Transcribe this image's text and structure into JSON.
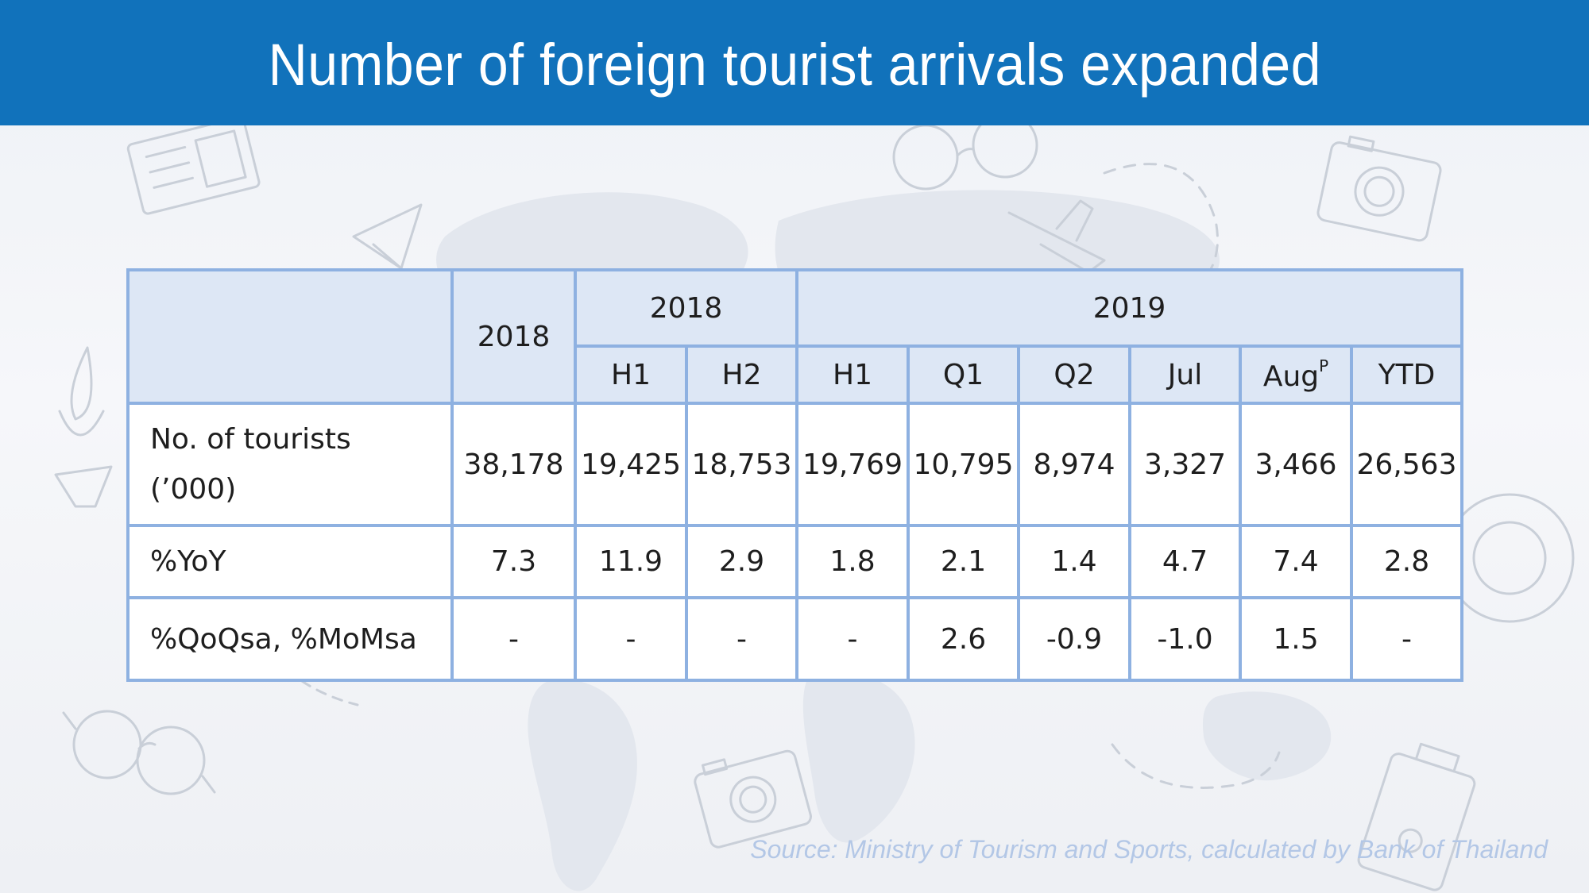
{
  "title": "Number of foreign tourist arrivals expanded",
  "table": {
    "group_headers": {
      "year_2018": "2018",
      "group_2018": "2018",
      "group_2019": "2019"
    },
    "sub_headers": [
      "H1",
      "H2",
      "H1",
      "Q1",
      "Q2",
      "Jul",
      "Aug",
      "YTD"
    ],
    "aug_superscript": "P",
    "rows": [
      {
        "label_line1": "No. of tourists",
        "label_line2": "(’000)",
        "cells": [
          "38,178",
          "19,425",
          "18,753",
          "19,769",
          "10,795",
          "8,974",
          "3,327",
          "3,466",
          "26,563"
        ]
      },
      {
        "label": "%YoY",
        "cells": [
          "7.3",
          "11.9",
          "2.9",
          "1.8",
          "2.1",
          "1.4",
          "4.7",
          "7.4",
          "2.8"
        ]
      },
      {
        "label": "%QoQsa, %MoMsa",
        "cells": [
          "-",
          "-",
          "-",
          "-",
          "2.6",
          "-0.9",
          "-1.0",
          "1.5",
          "-"
        ]
      }
    ]
  },
  "source": "Source: Ministry of Tourism and Sports, calculated by Bank of Thailand",
  "colors": {
    "header_bg": "#1172bb",
    "table_border": "#8eb1e1",
    "table_header_bg": "#dde7f5",
    "source_text": "#b3c7e6"
  }
}
